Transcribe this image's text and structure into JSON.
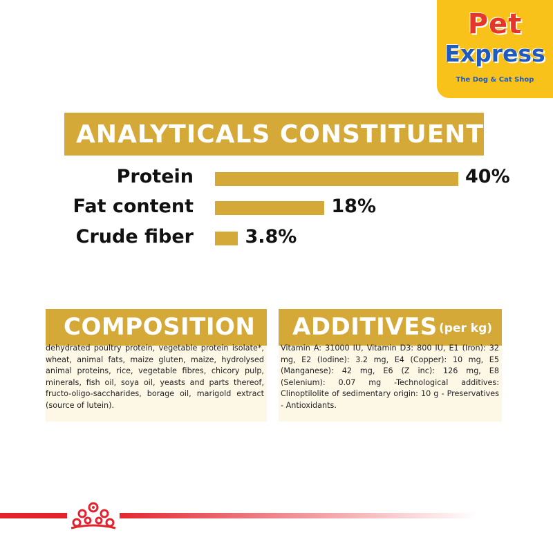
{
  "brand": {
    "name_line1": "Pet",
    "name_line2": "Express",
    "tagline": "The Dog & Cat Shop"
  },
  "analyticals": {
    "title": "ANALYTICALS CONSTITUENTS",
    "rows": [
      {
        "label": "Protein",
        "value_text": "40%",
        "value": 40
      },
      {
        "label": "Fat content",
        "value_text": "18%",
        "value": 18
      },
      {
        "label": "Crude fiber",
        "value_text": "3.8%",
        "value": 3.8
      }
    ]
  },
  "composition": {
    "title": "COMPOSITION",
    "text": "dehydrated poultry protein, vegetable protein isolate*, wheat, animal fats, maize gluten, maize, hydrolysed animal proteins, rice, vegetable fibres, chicory pulp, minerals, fish oil, soya oil, yeasts and parts thereof, fructo-oligo-saccharides, borage oil, marigold extract (source of lutein)."
  },
  "additives": {
    "title": "ADDITIVES",
    "title_sub": "(per kg)",
    "text": "Vitamin A: 31000 IU, Vitamin D3: 800 IU, E1 (Iron): 32 mg, E2 (Iodine): 3.2 mg, E4 (Copper): 10 mg, E5 (Manganese): 42 mg, E6 (Z inc): 126 mg, E8 (Selenium): 0.07 mg -Technological additives: Clinoptilolite of sedimentary origin: 10 g - Preservatives - Antioxidants."
  },
  "colors": {
    "accent_gold": "#d5a938",
    "panel_bg": "#fdf7e6",
    "brand_yellow": "#f8c21a",
    "brand_red": "#e53629",
    "brand_blue": "#1f5bbf",
    "footer_red": "#e2232e"
  },
  "icons": {
    "footer_logo": "royal-canin-crown-icon"
  }
}
